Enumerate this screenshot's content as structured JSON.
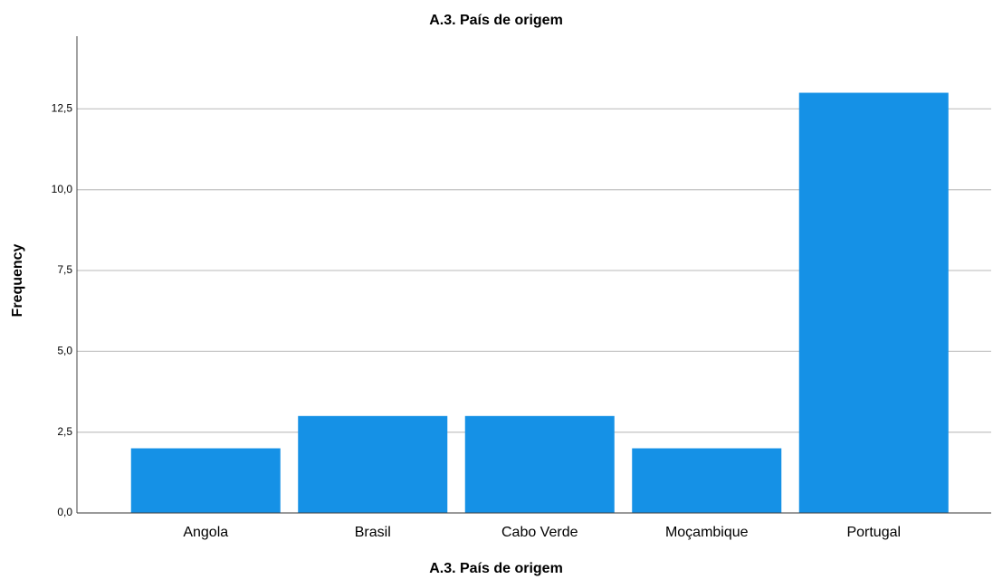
{
  "chart_data": {
    "type": "bar",
    "title": "A.3. País de origem",
    "x_label": "A.3. País de origem",
    "y_label": "Frequency",
    "categories": [
      "Angola",
      "Brasil",
      "Cabo Verde",
      "Moçambique",
      "Portugal"
    ],
    "values": [
      2,
      3,
      3,
      2,
      13
    ],
    "color": "#1591e6",
    "ylim": [
      0,
      14.75
    ],
    "yticks": [
      {
        "value": 0,
        "label": "0,0"
      },
      {
        "value": 2.5,
        "label": "2,5"
      },
      {
        "value": 5,
        "label": "5,0"
      },
      {
        "value": 7.5,
        "label": "7,5"
      },
      {
        "value": 10,
        "label": "10,0"
      },
      {
        "value": 12.5,
        "label": "12,5"
      }
    ],
    "grid": true
  }
}
